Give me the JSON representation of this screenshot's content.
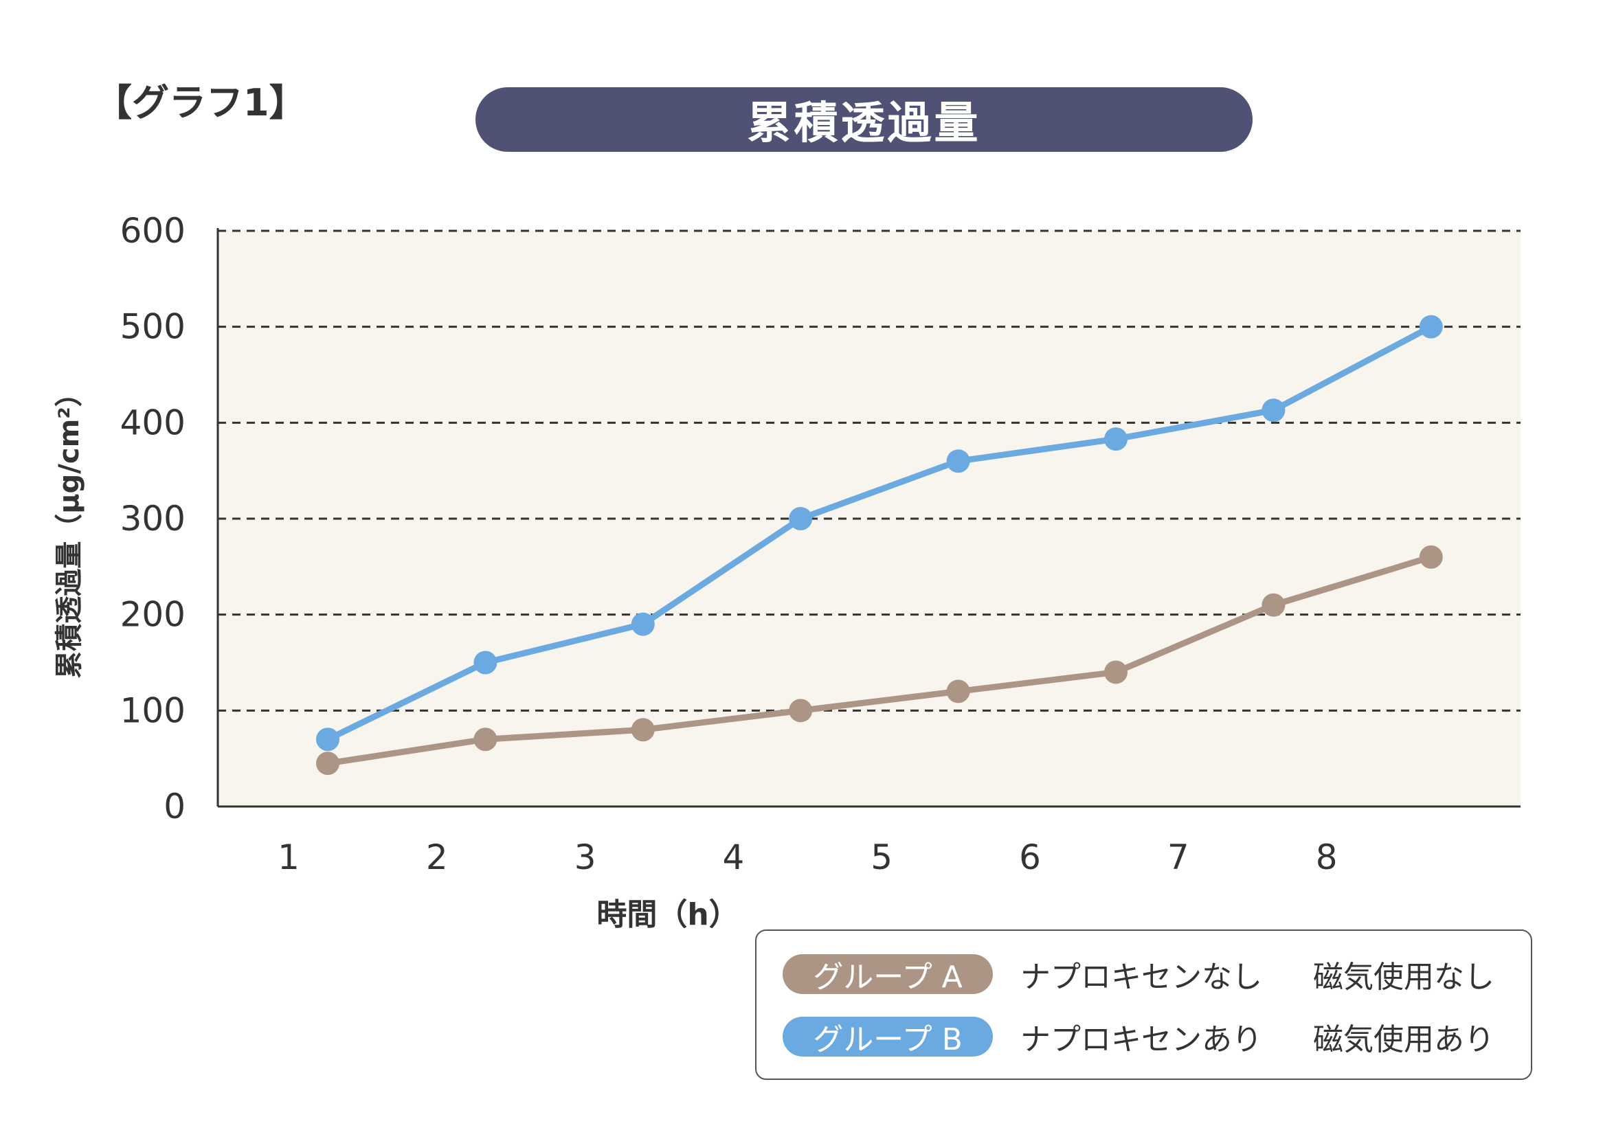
{
  "graph_label": "【グラフ1】",
  "colors": {
    "title_bg": "#4f5175",
    "group_a": "#ad9585",
    "group_b": "#6aaae0",
    "plot_bg": "#f8f5ef"
  },
  "legend": [
    {
      "name": "グループ A",
      "naproxen": "ナプロキセンなし",
      "magnet": "磁気使用なし"
    },
    {
      "name": "グループ B",
      "naproxen": "ナプロキセンあり",
      "magnet": "磁気使用あり"
    }
  ],
  "chart_data": {
    "type": "line",
    "title": "累積透過量",
    "xlabel": "時間（h）",
    "ylabel": "累積透過量（µg/cm²）",
    "x_ticks": [
      "1",
      "2",
      "3",
      "4",
      "5",
      "6",
      "7",
      "8"
    ],
    "y_ticks": [
      "0",
      "100",
      "200",
      "300",
      "400",
      "500",
      "600"
    ],
    "ylim": [
      0,
      600
    ],
    "grid": "horizontal dashed",
    "legend_position": "bottom-right",
    "series": [
      {
        "name": "グループ A",
        "values": [
          45,
          70,
          80,
          100,
          120,
          140,
          210,
          260
        ]
      },
      {
        "name": "グループ B",
        "values": [
          70,
          150,
          190,
          300,
          360,
          383,
          413,
          500
        ]
      }
    ]
  }
}
